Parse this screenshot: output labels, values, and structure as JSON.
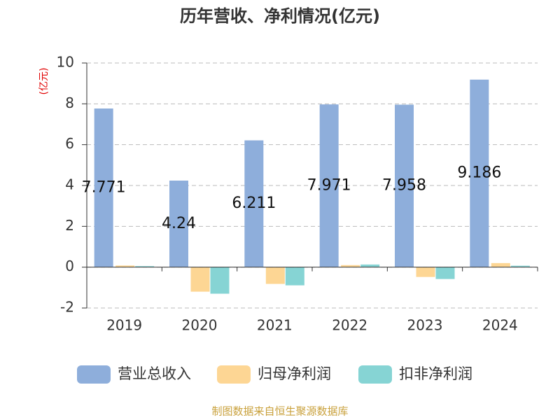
{
  "chart_data": {
    "type": "bar",
    "title": "历年营收、净利情况(亿元)",
    "y_label": "(亿元)",
    "categories": [
      "2019",
      "2020",
      "2021",
      "2022",
      "2023",
      "2024"
    ],
    "series": [
      {
        "name": "营业总收入",
        "color": "#8eaedb",
        "values": [
          7.771,
          4.24,
          6.211,
          7.971,
          7.958,
          9.186
        ]
      },
      {
        "name": "归母净利润",
        "color": "#fdd694",
        "values": [
          0.08,
          -1.2,
          -0.82,
          0.1,
          -0.48,
          0.2
        ]
      },
      {
        "name": "扣非净利润",
        "color": "#86d4d4",
        "values": [
          0.05,
          -1.3,
          -0.89,
          0.13,
          -0.58,
          0.07
        ]
      }
    ],
    "ylim": [
      -2,
      10
    ],
    "yticks": [
      -2,
      0,
      2,
      4,
      6,
      8,
      10
    ],
    "grid": true,
    "source": "制图数据来自恒生聚源数据库"
  }
}
